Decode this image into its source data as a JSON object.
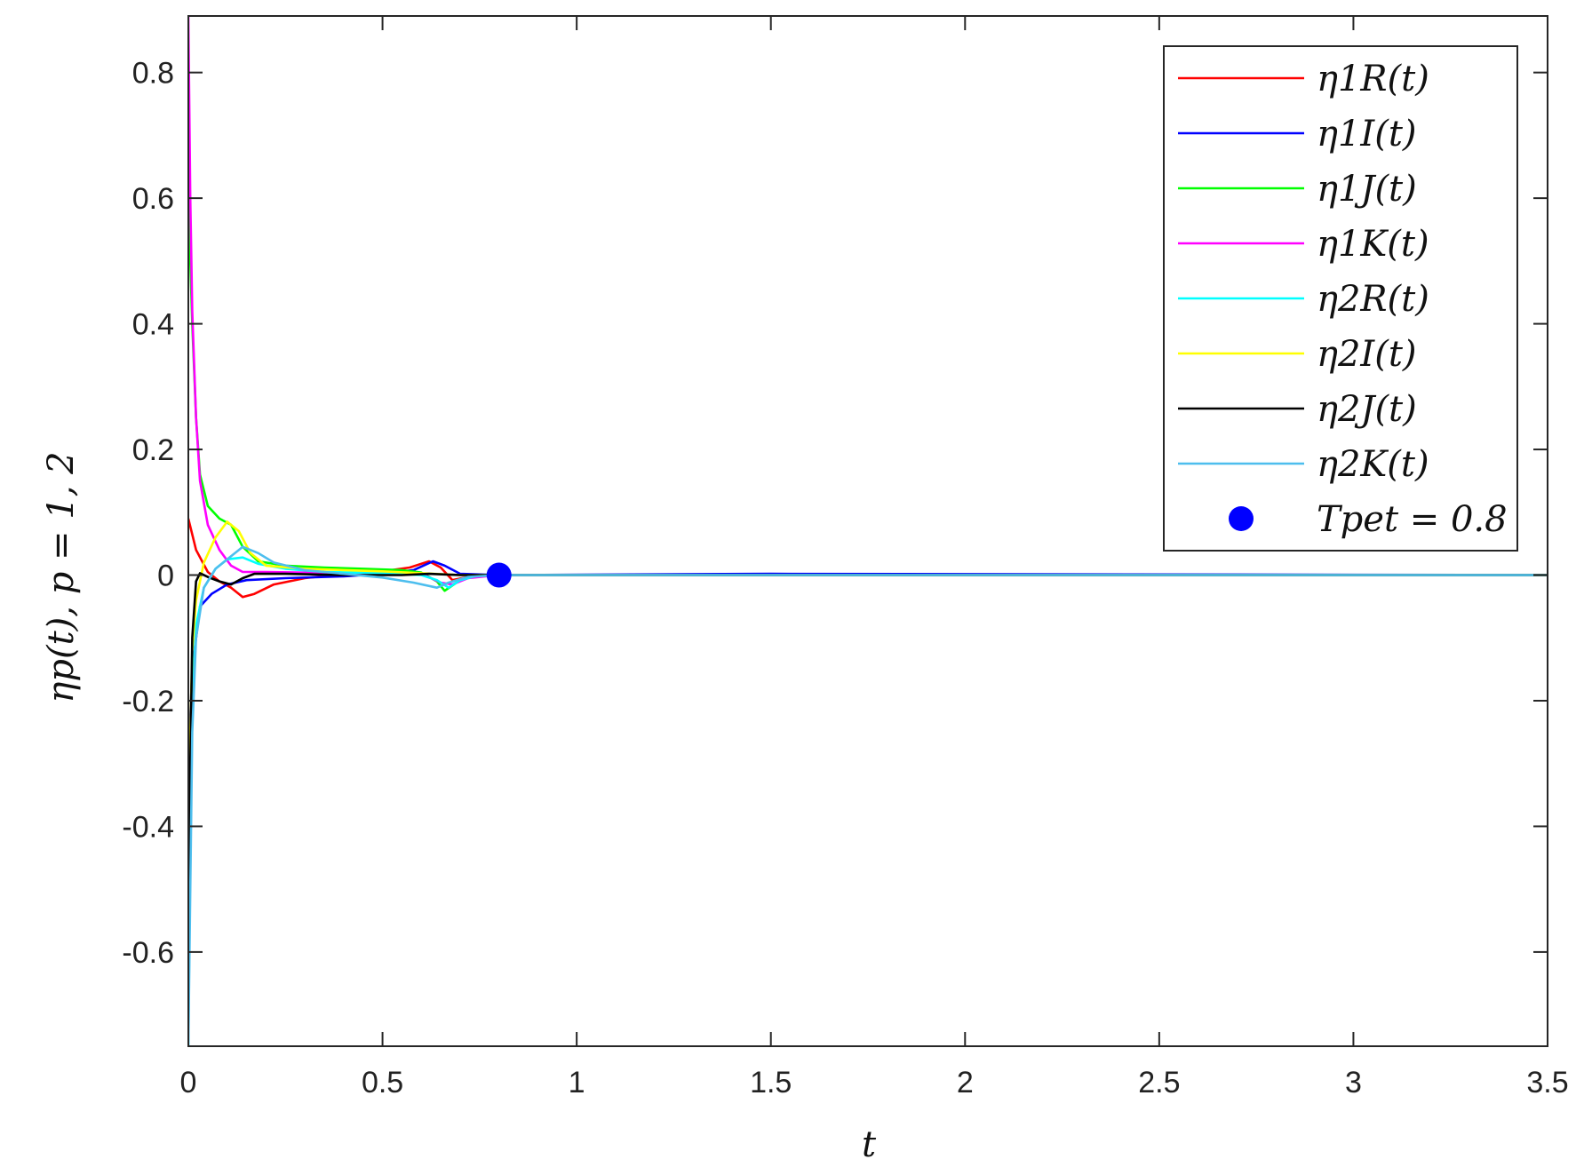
{
  "chart_data": {
    "type": "line",
    "xlabel": "t",
    "ylabel": "ηp(t), p = 1, 2",
    "xlim": [
      0,
      3.5
    ],
    "ylim": [
      -0.75,
      0.89
    ],
    "xticks": [
      0,
      0.5,
      1,
      1.5,
      2,
      2.5,
      3,
      3.5
    ],
    "xtick_labels": [
      "0",
      "0.5",
      "1",
      "1.5",
      "2",
      "2.5",
      "3",
      "3.5"
    ],
    "yticks": [
      -0.6,
      -0.4,
      -0.2,
      0,
      0.2,
      0.4,
      0.6,
      0.8
    ],
    "ytick_labels": [
      "-0.6",
      "-0.4",
      "-0.2",
      "0",
      "0.2",
      "0.4",
      "0.6",
      "0.8"
    ],
    "grid": false,
    "legend_position": "top-right",
    "series": [
      {
        "name": "η1R(t)",
        "color": "#ff0000",
        "points": [
          [
            0,
            0.09
          ],
          [
            0.02,
            0.04
          ],
          [
            0.05,
            0.005
          ],
          [
            0.08,
            -0.01
          ],
          [
            0.11,
            -0.02
          ],
          [
            0.14,
            -0.035
          ],
          [
            0.17,
            -0.03
          ],
          [
            0.22,
            -0.015
          ],
          [
            0.3,
            -0.005
          ],
          [
            0.4,
            0.002
          ],
          [
            0.5,
            0.006
          ],
          [
            0.57,
            0.012
          ],
          [
            0.62,
            0.022
          ],
          [
            0.65,
            0.012
          ],
          [
            0.68,
            -0.008
          ],
          [
            0.72,
            -0.003
          ],
          [
            0.8,
            0
          ],
          [
            3.5,
            0
          ]
        ]
      },
      {
        "name": "η1I(t)",
        "color": "#0000ff",
        "points": [
          [
            0,
            -0.3
          ],
          [
            0.01,
            -0.15
          ],
          [
            0.03,
            -0.05
          ],
          [
            0.06,
            -0.03
          ],
          [
            0.1,
            -0.015
          ],
          [
            0.15,
            -0.008
          ],
          [
            0.25,
            -0.005
          ],
          [
            0.4,
            -0.002
          ],
          [
            0.5,
            0.002
          ],
          [
            0.58,
            0.008
          ],
          [
            0.63,
            0.022
          ],
          [
            0.66,
            0.015
          ],
          [
            0.7,
            0.002
          ],
          [
            0.8,
            0
          ],
          [
            1.5,
            0.002
          ],
          [
            3.5,
            0
          ]
        ]
      },
      {
        "name": "η1J(t)",
        "color": "#00ff00",
        "points": [
          [
            0,
            0.6
          ],
          [
            0.01,
            0.4
          ],
          [
            0.02,
            0.25
          ],
          [
            0.03,
            0.16
          ],
          [
            0.05,
            0.11
          ],
          [
            0.08,
            0.09
          ],
          [
            0.11,
            0.08
          ],
          [
            0.14,
            0.045
          ],
          [
            0.18,
            0.022
          ],
          [
            0.25,
            0.015
          ],
          [
            0.35,
            0.012
          ],
          [
            0.45,
            0.01
          ],
          [
            0.55,
            0.008
          ],
          [
            0.6,
            0.004
          ],
          [
            0.64,
            -0.01
          ],
          [
            0.66,
            -0.025
          ],
          [
            0.7,
            -0.008
          ],
          [
            0.75,
            0
          ],
          [
            3.5,
            0
          ]
        ]
      },
      {
        "name": "η1K(t)",
        "color": "#ff00ff",
        "points": [
          [
            0,
            0.89
          ],
          [
            0.005,
            0.6
          ],
          [
            0.01,
            0.42
          ],
          [
            0.02,
            0.25
          ],
          [
            0.03,
            0.15
          ],
          [
            0.05,
            0.08
          ],
          [
            0.08,
            0.04
          ],
          [
            0.11,
            0.015
          ],
          [
            0.14,
            0.005
          ],
          [
            0.2,
            0.005
          ],
          [
            0.3,
            0.004
          ],
          [
            0.5,
            0.003
          ],
          [
            0.6,
            0.002
          ],
          [
            0.65,
            -0.012
          ],
          [
            0.68,
            -0.015
          ],
          [
            0.72,
            -0.005
          ],
          [
            0.8,
            0
          ],
          [
            3.5,
            0
          ]
        ]
      },
      {
        "name": "η2R(t)",
        "color": "#00ffff",
        "points": [
          [
            0,
            -0.75
          ],
          [
            0.005,
            -0.4
          ],
          [
            0.01,
            -0.2
          ],
          [
            0.02,
            -0.08
          ],
          [
            0.04,
            -0.02
          ],
          [
            0.07,
            0.01
          ],
          [
            0.1,
            0.025
          ],
          [
            0.14,
            0.028
          ],
          [
            0.18,
            0.018
          ],
          [
            0.25,
            0.01
          ],
          [
            0.35,
            0.005
          ],
          [
            0.5,
            0.003
          ],
          [
            0.6,
            0
          ],
          [
            0.64,
            -0.008
          ],
          [
            0.67,
            -0.02
          ],
          [
            0.7,
            -0.008
          ],
          [
            0.75,
            0
          ],
          [
            3.5,
            0
          ]
        ]
      },
      {
        "name": "η2I(t)",
        "color": "#ffff00",
        "points": [
          [
            0,
            -0.42
          ],
          [
            0.005,
            -0.25
          ],
          [
            0.01,
            -0.12
          ],
          [
            0.02,
            -0.04
          ],
          [
            0.04,
            0.02
          ],
          [
            0.07,
            0.06
          ],
          [
            0.1,
            0.085
          ],
          [
            0.13,
            0.07
          ],
          [
            0.16,
            0.035
          ],
          [
            0.2,
            0.015
          ],
          [
            0.3,
            0.01
          ],
          [
            0.4,
            0.008
          ],
          [
            0.5,
            0.006
          ],
          [
            0.6,
            0.003
          ],
          [
            0.7,
            0
          ],
          [
            3.5,
            0
          ]
        ]
      },
      {
        "name": "η2J(t)",
        "color": "#000000",
        "points": [
          [
            0,
            -0.6
          ],
          [
            0.005,
            -0.3
          ],
          [
            0.01,
            -0.1
          ],
          [
            0.02,
            -0.01
          ],
          [
            0.03,
            0.003
          ],
          [
            0.05,
            -0.003
          ],
          [
            0.08,
            -0.01
          ],
          [
            0.11,
            -0.015
          ],
          [
            0.14,
            -0.005
          ],
          [
            0.17,
            0.002
          ],
          [
            0.25,
            0.002
          ],
          [
            0.4,
            0
          ],
          [
            0.55,
            0
          ],
          [
            0.62,
            0.002
          ],
          [
            0.7,
            0
          ],
          [
            3.5,
            0
          ]
        ]
      },
      {
        "name": "η2K(t)",
        "color": "#4dbeee",
        "points": [
          [
            0,
            -0.75
          ],
          [
            0.005,
            -0.5
          ],
          [
            0.01,
            -0.25
          ],
          [
            0.02,
            -0.1
          ],
          [
            0.04,
            -0.02
          ],
          [
            0.07,
            0.01
          ],
          [
            0.11,
            0.03
          ],
          [
            0.14,
            0.045
          ],
          [
            0.18,
            0.035
          ],
          [
            0.22,
            0.02
          ],
          [
            0.3,
            0.008
          ],
          [
            0.4,
            0.002
          ],
          [
            0.5,
            -0.004
          ],
          [
            0.58,
            -0.012
          ],
          [
            0.64,
            -0.02
          ],
          [
            0.67,
            -0.012
          ],
          [
            0.72,
            -0.003
          ],
          [
            0.8,
            0
          ],
          [
            3.5,
            0
          ]
        ]
      }
    ],
    "marker": {
      "name": "Tpet = 0.8",
      "x": 0.8,
      "y": 0,
      "color": "#0000ff"
    }
  }
}
